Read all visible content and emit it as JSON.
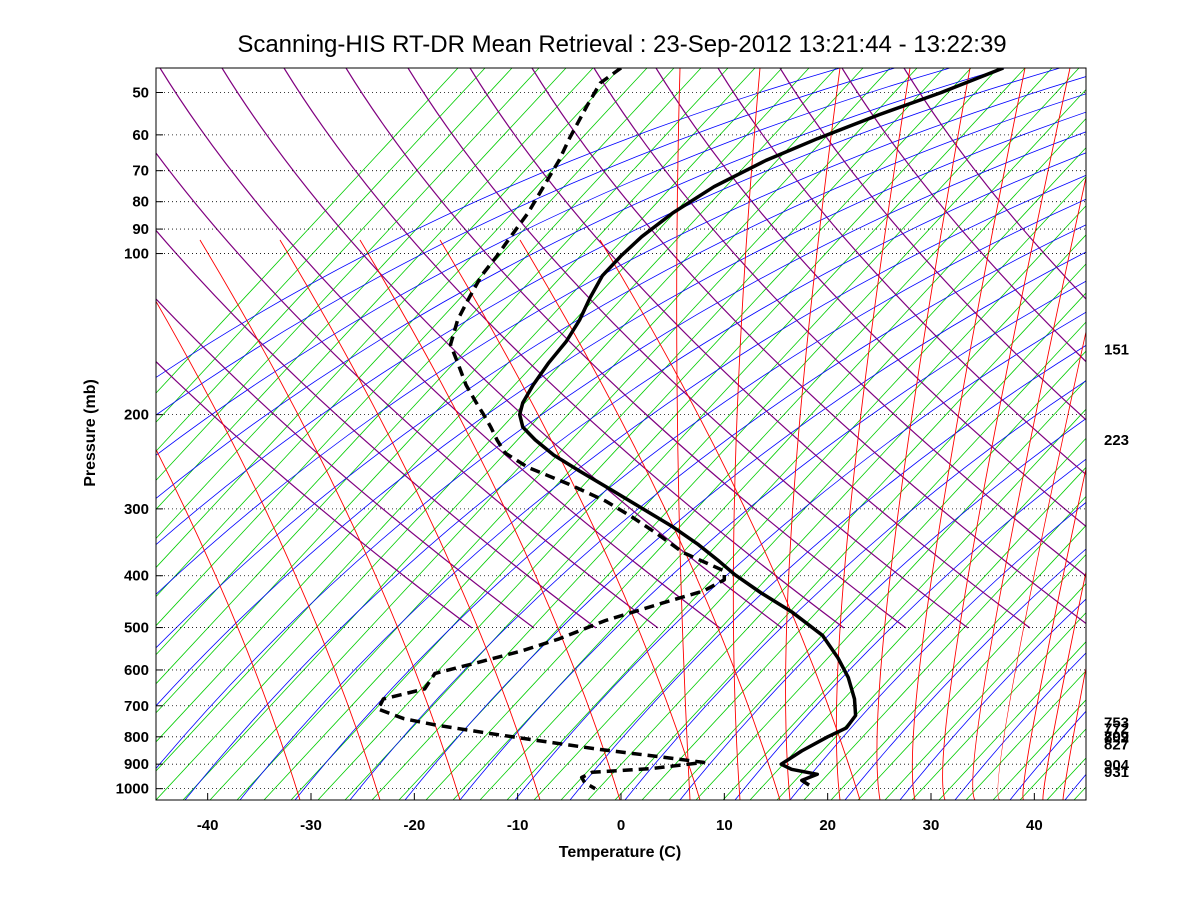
{
  "chart_data": {
    "type": "line",
    "title": "Scanning-HIS RT-DR Mean Retrieval : 23-Sep-2012 13:21:44 - 13:22:39",
    "xlabel": "Temperature (C)",
    "ylabel": "Pressure (mb)",
    "xlim": [
      -45,
      45
    ],
    "ylim": [
      1050,
      45
    ],
    "y_scale": "log",
    "x_ticks": [
      -40,
      -30,
      -20,
      -10,
      0,
      10,
      20,
      30,
      40
    ],
    "x_tick_labels": [
      "-40",
      "-30",
      "-20",
      "-10",
      "0",
      "10",
      "20",
      "30",
      "40"
    ],
    "y_ticks": [
      50,
      60,
      70,
      80,
      90,
      100,
      200,
      300,
      400,
      500,
      600,
      700,
      800,
      900,
      1000
    ],
    "y_tick_labels": [
      "50",
      "60",
      "70",
      "80",
      "90",
      "100",
      "200",
      "300",
      "400",
      "500",
      "600",
      "700",
      "800",
      "900",
      "1000"
    ],
    "grid": "horizontal dotted at pressure ticks",
    "background_lines": [
      {
        "name": "dry adiabats",
        "color": "#0000ff"
      },
      {
        "name": "moist adiabats",
        "color": "#ff0000"
      },
      {
        "name": "mixing ratio lines",
        "color": "#00cc00"
      },
      {
        "name": "upper lines",
        "color": "#800080"
      }
    ],
    "level_labels": [
      {
        "pressure": 151,
        "label": "151"
      },
      {
        "pressure": 223,
        "label": "223"
      },
      {
        "pressure": 753,
        "label": "753"
      },
      {
        "pressure": 772,
        "label": "772"
      },
      {
        "pressure": 799,
        "label": "799"
      },
      {
        "pressure": 802,
        "label": "802"
      },
      {
        "pressure": 827,
        "label": "827"
      },
      {
        "pressure": 904,
        "label": "904"
      },
      {
        "pressure": 931,
        "label": "931"
      }
    ],
    "series": [
      {
        "name": "Temperature",
        "style": "solid",
        "color": "#000000",
        "points": [
          [
            37,
            45
          ],
          [
            31,
            50
          ],
          [
            25,
            55
          ],
          [
            19,
            61
          ],
          [
            14,
            67
          ],
          [
            9,
            75
          ],
          [
            5,
            84
          ],
          [
            2,
            93
          ],
          [
            0,
            101
          ],
          [
            -1.8,
            110
          ],
          [
            -3,
            121
          ],
          [
            -4,
            133
          ],
          [
            -5.3,
            146
          ],
          [
            -7,
            160
          ],
          [
            -8.5,
            176
          ],
          [
            -9.5,
            190
          ],
          [
            -9.8,
            200
          ],
          [
            -9.5,
            211
          ],
          [
            -8.3,
            223
          ],
          [
            -6.5,
            238
          ],
          [
            -4,
            255
          ],
          [
            -1,
            276
          ],
          [
            2,
            299
          ],
          [
            5,
            324
          ],
          [
            7.5,
            350
          ],
          [
            9.5,
            376
          ],
          [
            11,
            398
          ],
          [
            13.5,
            430
          ],
          [
            16.5,
            467
          ],
          [
            19.5,
            517
          ],
          [
            21,
            570
          ],
          [
            22,
            620
          ],
          [
            22.6,
            680
          ],
          [
            22.7,
            730
          ],
          [
            21.8,
            770
          ],
          [
            20,
            800
          ],
          [
            17.5,
            850
          ],
          [
            15.5,
            900
          ],
          [
            16.5,
            920
          ],
          [
            19,
            940
          ],
          [
            17.5,
            965
          ],
          [
            18.2,
            985
          ]
        ]
      },
      {
        "name": "Dewpoint",
        "style": "dashed",
        "color": "#000000",
        "points": [
          [
            0,
            45
          ],
          [
            -2,
            48
          ],
          [
            -3.3,
            53
          ],
          [
            -5,
            61
          ],
          [
            -6,
            67
          ],
          [
            -7.5,
            75
          ],
          [
            -9,
            84
          ],
          [
            -10.5,
            92
          ],
          [
            -12,
            101
          ],
          [
            -13.5,
            110
          ],
          [
            -14.7,
            121
          ],
          [
            -15.8,
            133
          ],
          [
            -16.5,
            148
          ],
          [
            -15.8,
            160
          ],
          [
            -15,
            176
          ],
          [
            -14,
            190
          ],
          [
            -13.3,
            200
          ],
          [
            -12.6,
            211
          ],
          [
            -12,
            223
          ],
          [
            -11.2,
            236
          ],
          [
            -9,
            251
          ],
          [
            -5,
            270
          ],
          [
            -1.5,
            290
          ],
          [
            1,
            310
          ],
          [
            3.5,
            334
          ],
          [
            6,
            362
          ],
          [
            10,
            392
          ],
          [
            10,
            407
          ],
          [
            8,
            427
          ],
          [
            4,
            450
          ],
          [
            -1.5,
            485
          ],
          [
            -6,
            525
          ],
          [
            -9.5,
            552
          ],
          [
            -14,
            582
          ],
          [
            -18,
            609
          ],
          [
            -19,
            651
          ],
          [
            -23,
            680
          ],
          [
            -23.5,
            710
          ],
          [
            -21,
            740
          ],
          [
            -18,
            760
          ],
          [
            -13,
            787
          ],
          [
            -8,
            813
          ],
          [
            -2,
            845
          ],
          [
            4,
            873
          ],
          [
            8,
            893
          ],
          [
            3,
            917
          ],
          [
            -2.8,
            932
          ],
          [
            -3.8,
            953
          ],
          [
            -3.5,
            975
          ],
          [
            -2.5,
            1000
          ]
        ]
      }
    ]
  }
}
